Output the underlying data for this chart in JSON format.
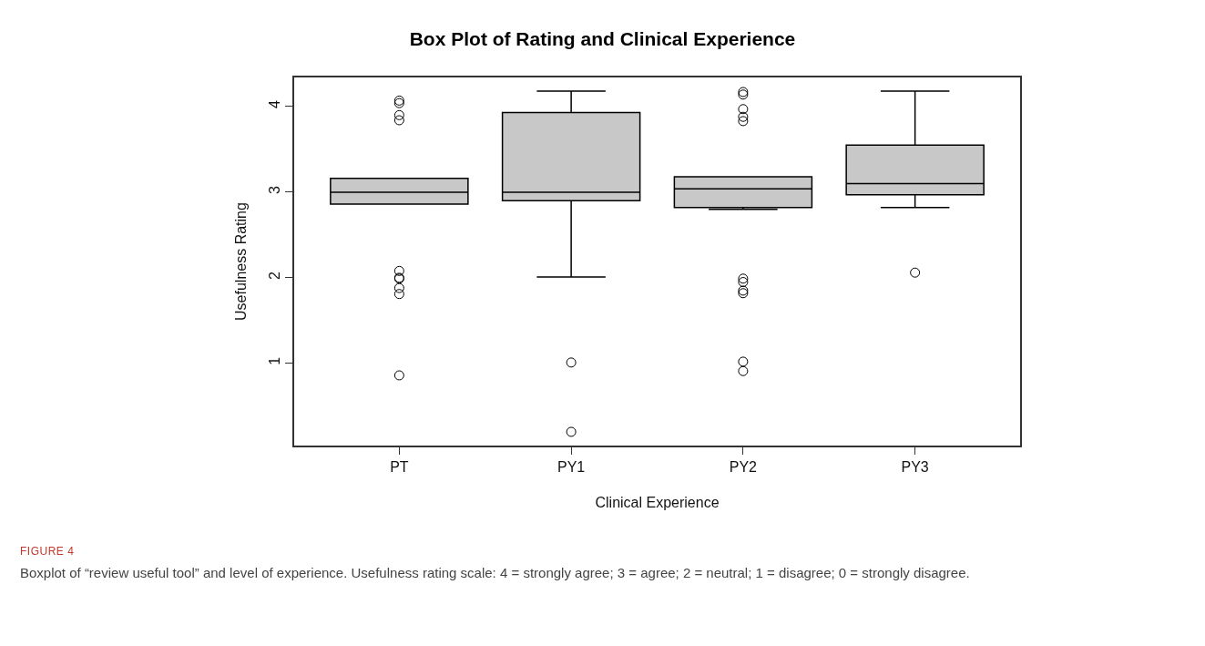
{
  "chart_data": {
    "type": "box",
    "title": "Box Plot of Rating and Clinical Experience",
    "xlabel": "Clinical Experience",
    "ylabel": "Usefulness Rating",
    "categories": [
      "PT",
      "PY1",
      "PY2",
      "PY3"
    ],
    "boxes": [
      {
        "low": 2.86,
        "q1": 2.86,
        "median": 3.0,
        "q3": 3.16,
        "high": 3.16,
        "outliers": [
          4.07,
          4.04,
          3.9,
          3.84,
          2.08,
          2.0,
          1.99,
          1.88,
          1.81,
          0.86
        ]
      },
      {
        "low": 2.01,
        "q1": 2.9,
        "median": 3.0,
        "q3": 3.93,
        "high": 4.18,
        "outliers": [
          1.01,
          0.2
        ]
      },
      {
        "low": 2.8,
        "q1": 2.82,
        "median": 3.04,
        "q3": 3.18,
        "high": 3.18,
        "outliers": [
          4.17,
          4.14,
          3.97,
          3.88,
          3.83,
          1.99,
          1.95,
          1.85,
          1.82,
          1.02,
          0.91
        ]
      },
      {
        "low": 2.82,
        "q1": 2.97,
        "median": 3.1,
        "q3": 3.55,
        "high": 4.18,
        "outliers": [
          2.06
        ]
      }
    ],
    "color": "#c8c8c8",
    "marker": "circle",
    "grid": false,
    "ylim": [
      0.04,
      4.34
    ],
    "yticks": [
      1,
      2,
      3,
      4
    ],
    "annotations": [
      "FIGURE 4",
      "Boxplot of “review useful tool” and level of experience. Usefulness rating scale: 4 = strongly agree; 3 = agree; 2 = neutral; 1 = disagree; 0 = strongly disagree."
    ]
  }
}
